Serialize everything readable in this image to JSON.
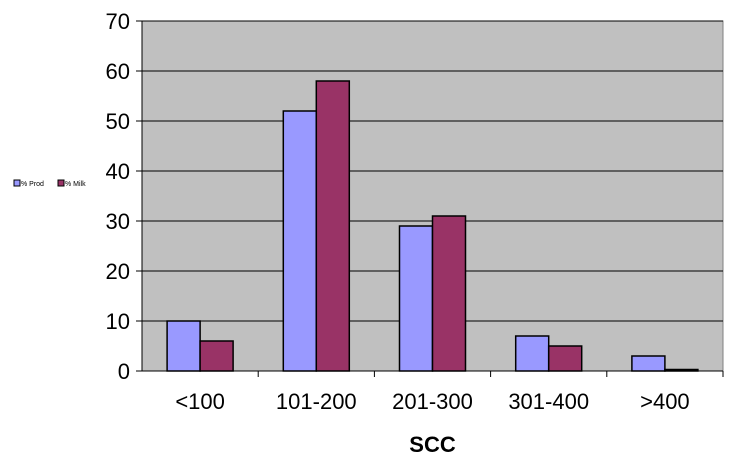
{
  "chart_data": {
    "type": "bar",
    "title": "",
    "xlabel": "SCC",
    "ylabel": "",
    "categories": [
      "<100",
      "101-200",
      "201-300",
      "301-400",
      ">400"
    ],
    "series": [
      {
        "name": "% Prod",
        "values": [
          10,
          52,
          29,
          7,
          3
        ],
        "color": "#9999ff"
      },
      {
        "name": "% Milk",
        "values": [
          6,
          58,
          31,
          5,
          0.3
        ],
        "color": "#993366"
      }
    ],
    "ylim": [
      0,
      70
    ],
    "yticks": [
      0,
      10,
      20,
      30,
      40,
      50,
      60,
      70
    ],
    "grid": true,
    "legend": "left",
    "plot_background": "#c0c0c0"
  }
}
